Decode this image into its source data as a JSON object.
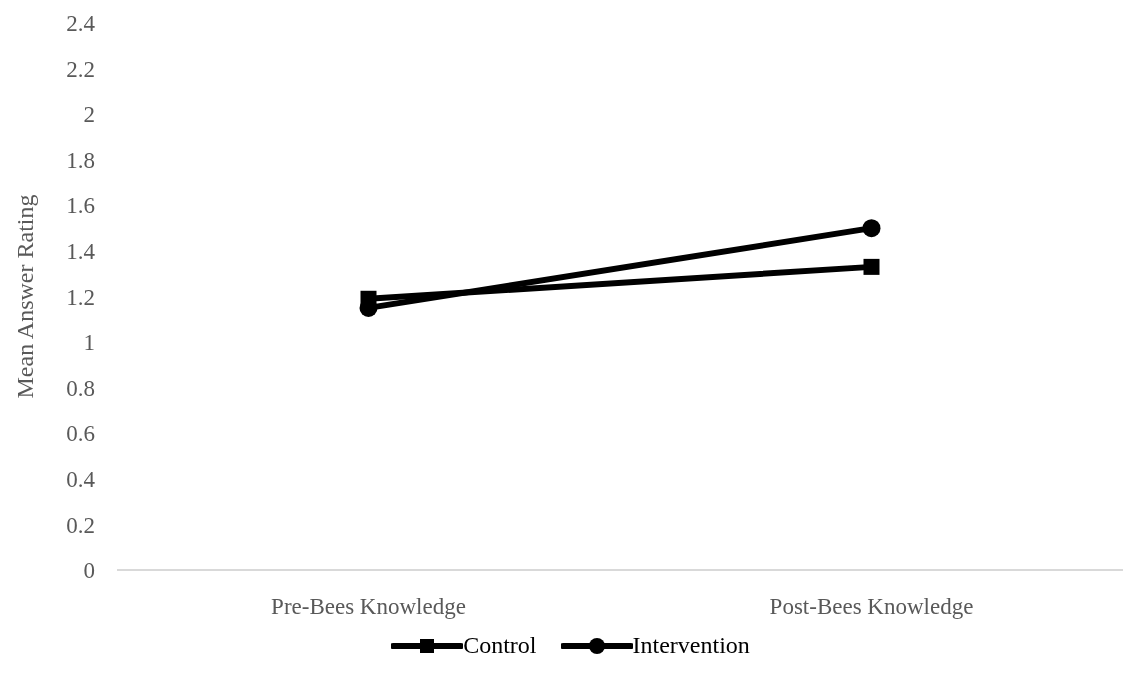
{
  "chart_data": {
    "type": "line",
    "ylabel": "Mean Answer Rating",
    "categories": [
      "Pre-Bees Knowledge",
      "Post-Bees Knowledge"
    ],
    "series": [
      {
        "name": "Control",
        "color": "#000000",
        "values": [
          1.19,
          1.33
        ],
        "marker": "square"
      },
      {
        "name": "Intervention",
        "color": "#000000",
        "values": [
          1.15,
          1.5
        ],
        "marker": "circle"
      }
    ],
    "ylim": [
      0,
      2.4
    ],
    "yticks": [
      0,
      0.2,
      0.4,
      0.6,
      0.8,
      1,
      1.2,
      1.4,
      1.6,
      1.8,
      2,
      2.2,
      2.4
    ],
    "grid": false,
    "legend": "bottom",
    "line_style": "solid"
  }
}
